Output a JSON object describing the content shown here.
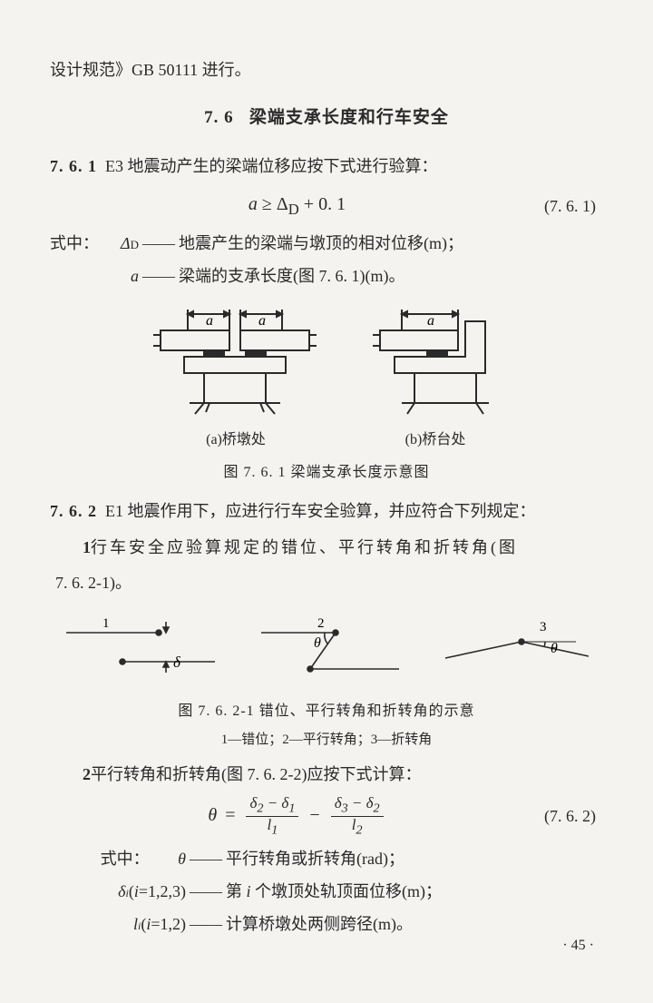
{
  "top_line": "设计规范》GB 50111 进行。",
  "section": {
    "num": "7. 6",
    "title": "梁端支承长度和行车安全"
  },
  "c761": {
    "num": "7. 6. 1",
    "text": "E3 地震动产生的梁端位移应按下式进行验算：",
    "formula_html": "<span>a</span> <span class='upright'>≥</span> <span class='upright'>Δ</span><sub class='upright'>D</sub> <span class='upright'>+ 0. 1</span>",
    "eq_num": "(7. 6. 1)",
    "where_label": "式中：",
    "w1_sym_html": "Δ<span class='sub'>D</span>",
    "w1_text": "地震产生的梁端与墩顶的相对位移(m)；",
    "w2_sym_html": "a",
    "w2_text": "梁端的支承长度(图 7. 6. 1)(m)。"
  },
  "fig1": {
    "a_cap": "(a)桥墩处",
    "b_cap": "(b)桥台处",
    "a_label": "a",
    "caption": "图 7. 6. 1  梁端支承长度示意图"
  },
  "c762": {
    "num": "7. 6. 2",
    "text": "E1 地震作用下，应进行行车安全验算，并应符合下列规定：",
    "item1_num": "1",
    "item1_text": "行车安全应验算规定的错位、平行转角和折转角(图",
    "item1_cont": "7. 6. 2-1)。",
    "item2_num": "2",
    "item2_text": "平行转角和折转角(图 7. 6. 2-2)应按下式计算：",
    "eq_num": "(7. 6. 2)"
  },
  "fig2": {
    "n1": "1",
    "n2": "2",
    "n3": "3",
    "delta": "δ",
    "theta": "θ",
    "caption": "图 7. 6. 2-1  错位、平行转角和折转角的示意",
    "subcaption": "1—错位；2—平行转角；3—折转角"
  },
  "formula2": {
    "theta": "θ",
    "eq": "=",
    "num1_html": "δ<sub>2</sub> − δ<sub>1</sub>",
    "den1_html": "l<sub>1</sub>",
    "minus": "−",
    "num2_html": "δ<sub>3</sub> − δ<sub>2</sub>",
    "den2_html": "l<sub>2</sub>"
  },
  "where2": {
    "label": "式中：",
    "r1_sym": "θ",
    "r1_text": "平行转角或折转角(rad)；",
    "r2_sym_html": "δ<span class='sub2'>i</span><span class='cn'>(</span>i<span class='cn'>=1,2,3)</span>",
    "r2_text": "第 i 个墩顶处轨顶面位移(m)；",
    "r3_sym_html": "l<span class='sub2'>i</span><span class='cn'>(</span>i<span class='cn'>=1,2)</span>",
    "r3_text": "计算桥墩处两侧跨径(m)。"
  },
  "page_num": "· 45 ·",
  "colors": {
    "stroke": "#2a2a2a",
    "hatch": "#2a2a2a"
  }
}
